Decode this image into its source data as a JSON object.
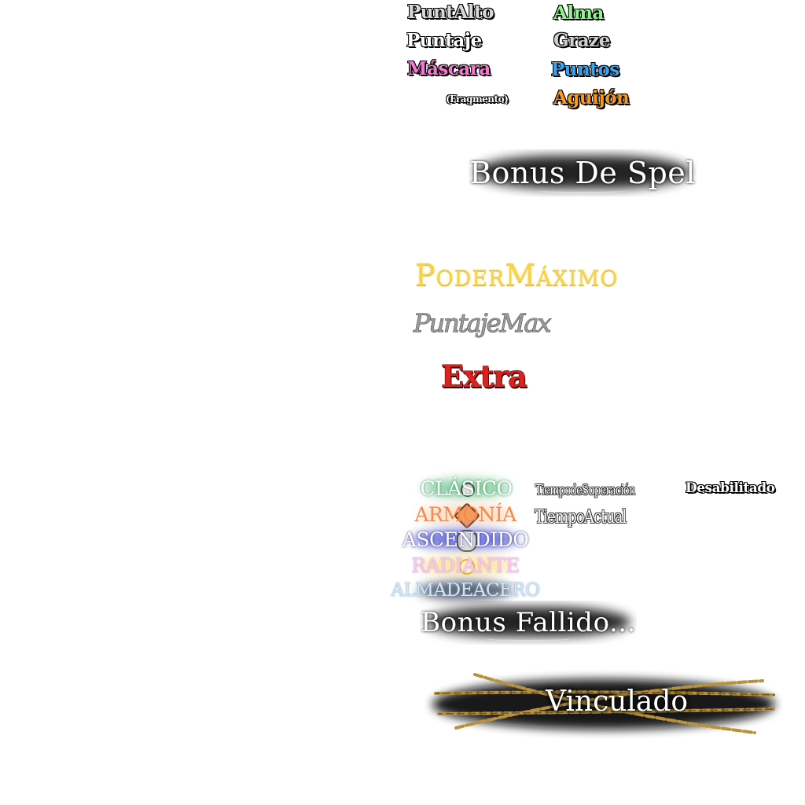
{
  "stats": {
    "punt_alto": "PuntAlto",
    "alma": "Alma",
    "puntaje": "Puntaje",
    "graze": "Graze",
    "mascara": "Máscara",
    "puntos": "Puntos",
    "fragmento": "(Fragmento)",
    "aguijon": "Aguijón"
  },
  "banners": {
    "spell_bonus": "Bonus De Spel",
    "failed_bonus": "Bonus Fallido...",
    "bound": "Vinculado"
  },
  "titles": {
    "poder_maximo": "PoderMáximo",
    "puntaje_max": "PuntajeMax",
    "extra": "Extra"
  },
  "modes": {
    "clasico": "CLÁSICO",
    "armonia": "ARMONÍA",
    "ascendido": "ASCENDIDO",
    "radiante": "RADIANTE",
    "almadeacero": "ALMADEACERO"
  },
  "timers": {
    "tiempo_superacion": "TiempodeSuperación",
    "tiempo_actual": "TiempoActual"
  },
  "flags": {
    "desabilitado": "Desabilitado"
  },
  "colors": {
    "alma": "#8ef58a",
    "mascara": "#f47ad0",
    "puntos": "#3aa4ee",
    "aguijon": "#f59a1d",
    "graze": "#cfcfcf",
    "gold": "#f2c230",
    "extra_red": "#d8231e"
  }
}
